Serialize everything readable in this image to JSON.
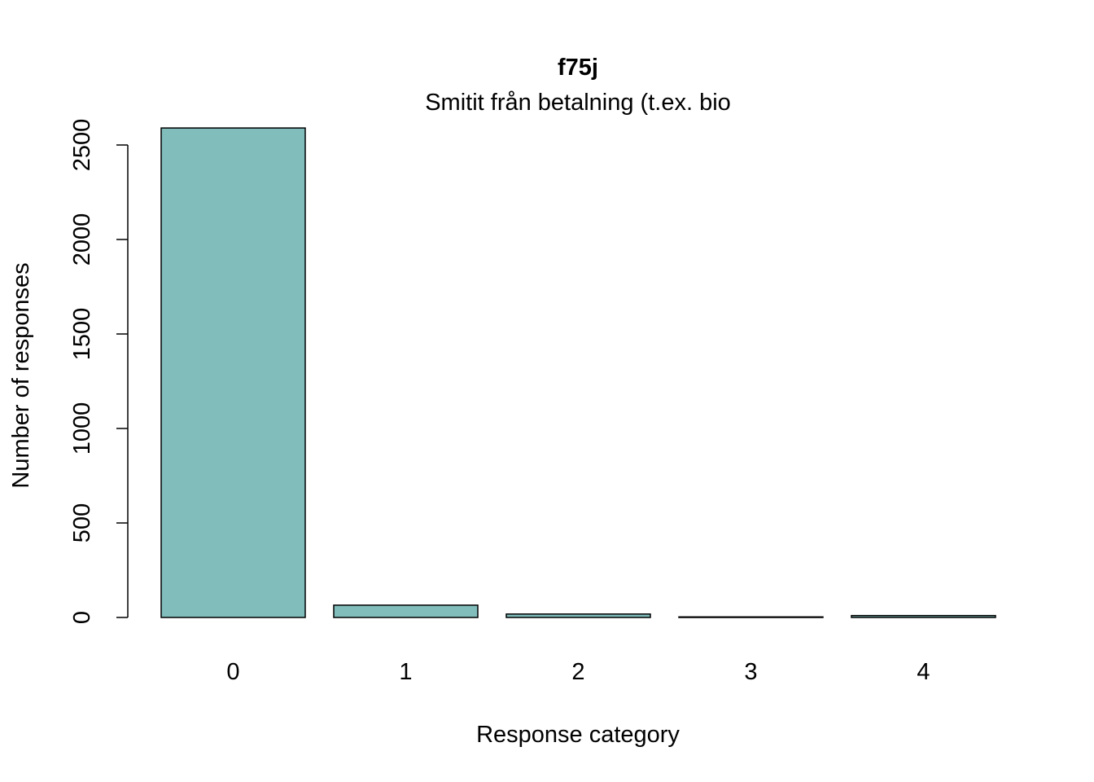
{
  "chart_data": {
    "type": "bar",
    "title": "f75j",
    "subtitle": "Smitit från betalning (t.ex. bio",
    "xlabel": "Response category",
    "ylabel": "Number of responses",
    "categories": [
      "0",
      "1",
      "2",
      "3",
      "4"
    ],
    "values": [
      2590,
      65,
      18,
      3,
      10
    ],
    "ylim": [
      0,
      2500
    ],
    "yticks": [
      0,
      500,
      1000,
      1500,
      2000,
      2500
    ],
    "bar_color": "#80bdbb",
    "grid": false,
    "legend": "none"
  }
}
